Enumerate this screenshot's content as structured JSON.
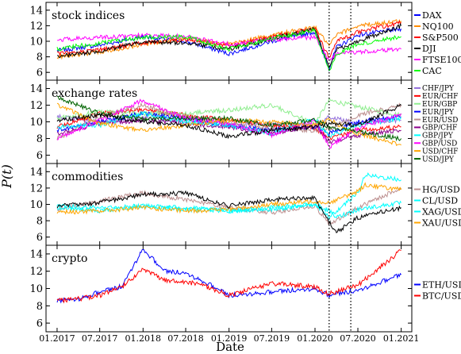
{
  "chart_data": {
    "type": "line",
    "xlabel": "Date",
    "ylabel": "P(t)",
    "x_ticks": [
      "01.2017",
      "07.2017",
      "01.2018",
      "07.2018",
      "01.2019",
      "07.2019",
      "01.2020",
      "07.2020",
      "01.2021"
    ],
    "x_range": [
      "2016-11-15",
      "2021-02-15"
    ],
    "vlines": [
      "2020-03-01",
      "2020-06-01"
    ],
    "legend_placement": "right",
    "grid": false,
    "panels": [
      {
        "title": "stock indices",
        "ylim": [
          5,
          15
        ],
        "yticks": [
          6,
          8,
          10,
          12,
          14
        ],
        "series": [
          {
            "name": "DAX",
            "color": "#0000ff",
            "dates": [
              "2017-01",
              "2017-07",
              "2018-01",
              "2018-07",
              "2019-01",
              "2019-07",
              "2020-01",
              "2020-03",
              "2020-04",
              "2020-07",
              "2021-01"
            ],
            "values": [
              8.8,
              9.5,
              10.6,
              10.0,
              8.4,
              10.0,
              11.2,
              6.5,
              9.2,
              10.8,
              11.6
            ]
          },
          {
            "name": "NQ100",
            "color": "#ff8c00",
            "dates": [
              "2017-01",
              "2017-07",
              "2018-01",
              "2018-07",
              "2019-01",
              "2019-07",
              "2020-01",
              "2020-03",
              "2020-04",
              "2020-07",
              "2021-01"
            ],
            "values": [
              8.0,
              8.6,
              9.6,
              10.4,
              9.6,
              10.8,
              11.8,
              9.4,
              10.8,
              12.0,
              12.6
            ]
          },
          {
            "name": "S&P500",
            "color": "#ff0000",
            "dates": [
              "2017-01",
              "2017-07",
              "2018-01",
              "2018-07",
              "2019-01",
              "2019-07",
              "2020-01",
              "2020-03",
              "2020-04",
              "2020-07",
              "2021-01"
            ],
            "values": [
              8.4,
              8.9,
              9.8,
              10.2,
              9.4,
              10.6,
              11.6,
              7.8,
              10.0,
              11.2,
              12.4
            ]
          },
          {
            "name": "DJI",
            "color": "#000000",
            "dates": [
              "2017-01",
              "2017-07",
              "2018-01",
              "2018-07",
              "2019-01",
              "2019-07",
              "2020-01",
              "2020-03",
              "2020-04",
              "2020-07",
              "2021-01"
            ],
            "values": [
              8.1,
              8.7,
              9.9,
              9.8,
              9.0,
              10.3,
              11.6,
              6.6,
              8.9,
              10.0,
              12.0
            ]
          },
          {
            "name": "FTSE100",
            "color": "#ff00ff",
            "dates": [
              "2017-01",
              "2017-07",
              "2018-01",
              "2018-07",
              "2019-01",
              "2019-07",
              "2020-01",
              "2020-03",
              "2020-04",
              "2020-07",
              "2021-01"
            ],
            "values": [
              10.2,
              10.5,
              10.8,
              10.6,
              9.6,
              10.2,
              10.5,
              7.6,
              8.4,
              8.6,
              9.0
            ]
          },
          {
            "name": "CAC",
            "color": "#00ff00",
            "dates": [
              "2017-01",
              "2017-07",
              "2018-01",
              "2018-07",
              "2019-01",
              "2019-07",
              "2020-01",
              "2020-03",
              "2020-04",
              "2020-07",
              "2021-01"
            ],
            "values": [
              9.0,
              9.8,
              10.5,
              10.6,
              9.0,
              10.4,
              11.4,
              6.2,
              8.4,
              9.6,
              10.6
            ]
          }
        ]
      },
      {
        "title": "exchange rates",
        "ylim": [
          5,
          15
        ],
        "yticks": [
          6,
          8,
          10,
          12,
          14
        ],
        "series": [
          {
            "name": "CHF/JPY",
            "color": "#9370db",
            "dates": [
              "2017-01",
              "2017-07",
              "2018-01",
              "2018-07",
              "2019-01",
              "2019-07",
              "2020-01",
              "2020-03",
              "2020-07",
              "2021-01"
            ],
            "values": [
              10.6,
              10.0,
              10.4,
              10.2,
              9.4,
              9.8,
              9.6,
              10.6,
              9.8,
              10.2
            ]
          },
          {
            "name": "EUR/CHF",
            "color": "#ff0000",
            "dates": [
              "2017-01",
              "2017-07",
              "2018-01",
              "2018-07",
              "2019-01",
              "2019-07",
              "2020-01",
              "2020-03",
              "2020-07",
              "2021-01"
            ],
            "values": [
              9.4,
              11.0,
              11.4,
              10.8,
              10.2,
              9.6,
              9.2,
              8.0,
              9.0,
              9.4
            ]
          },
          {
            "name": "EUR/GBP",
            "color": "#90ee90",
            "dates": [
              "2017-01",
              "2017-07",
              "2018-01",
              "2018-07",
              "2019-01",
              "2019-07",
              "2020-01",
              "2020-03",
              "2020-07",
              "2021-01"
            ],
            "values": [
              10.4,
              11.2,
              11.0,
              11.0,
              11.4,
              12.0,
              9.8,
              12.6,
              11.8,
              10.8
            ]
          },
          {
            "name": "EUR/JPY",
            "color": "#0000ff",
            "dates": [
              "2017-01",
              "2017-07",
              "2018-01",
              "2018-07",
              "2019-01",
              "2019-07",
              "2020-01",
              "2020-03",
              "2020-07",
              "2021-01"
            ],
            "values": [
              9.0,
              10.0,
              11.0,
              10.4,
              9.6,
              9.0,
              9.4,
              8.6,
              10.0,
              10.6
            ]
          },
          {
            "name": "EUR/USD",
            "color": "#bc8f8f",
            "dates": [
              "2017-01",
              "2017-07",
              "2018-01",
              "2018-07",
              "2019-01",
              "2019-07",
              "2020-01",
              "2020-03",
              "2020-07",
              "2021-01"
            ],
            "values": [
              8.0,
              10.6,
              12.0,
              10.6,
              10.0,
              9.2,
              9.0,
              9.2,
              10.8,
              12.0
            ]
          },
          {
            "name": "GBP/CHF",
            "color": "#8b008b",
            "dates": [
              "2017-01",
              "2017-07",
              "2018-01",
              "2018-07",
              "2019-01",
              "2019-07",
              "2020-01",
              "2020-03",
              "2020-07",
              "2021-01"
            ],
            "values": [
              8.6,
              9.8,
              10.2,
              9.8,
              9.4,
              8.6,
              9.6,
              7.6,
              8.4,
              9.0
            ]
          },
          {
            "name": "GBP/JPY",
            "color": "#00ffff",
            "dates": [
              "2017-01",
              "2017-07",
              "2018-01",
              "2018-07",
              "2019-01",
              "2019-07",
              "2020-01",
              "2020-03",
              "2020-07",
              "2021-01"
            ],
            "values": [
              9.4,
              9.6,
              11.0,
              10.0,
              9.6,
              8.6,
              10.4,
              8.2,
              9.6,
              10.4
            ]
          },
          {
            "name": "GBP/USD",
            "color": "#ff00ff",
            "dates": [
              "2017-01",
              "2017-07",
              "2018-01",
              "2018-07",
              "2019-01",
              "2019-07",
              "2020-01",
              "2020-03",
              "2020-07",
              "2021-01"
            ],
            "values": [
              8.0,
              10.2,
              12.6,
              10.4,
              9.8,
              8.4,
              10.2,
              7.0,
              9.2,
              11.0
            ]
          },
          {
            "name": "USD/CHF",
            "color": "#ffa500",
            "dates": [
              "2017-01",
              "2017-07",
              "2018-01",
              "2018-07",
              "2019-01",
              "2019-07",
              "2020-01",
              "2020-03",
              "2020-07",
              "2021-01"
            ],
            "values": [
              12.0,
              9.8,
              9.0,
              9.6,
              10.2,
              10.0,
              9.6,
              10.2,
              8.6,
              7.2
            ]
          },
          {
            "name": "USD/JPY",
            "color": "#006400",
            "dates": [
              "2017-01",
              "2017-07",
              "2018-01",
              "2018-07",
              "2019-01",
              "2019-07",
              "2020-01",
              "2020-03",
              "2020-07",
              "2021-01"
            ],
            "values": [
              13.0,
              11.0,
              10.4,
              10.4,
              10.4,
              9.6,
              10.2,
              9.4,
              8.8,
              8.0
            ]
          },
          {
            "name": "",
            "color": "#000000",
            "dates": [
              "2017-01",
              "2017-07",
              "2018-01",
              "2018-07",
              "2019-01",
              "2019-07",
              "2020-01",
              "2020-03",
              "2020-07",
              "2021-01"
            ],
            "values": [
              10.2,
              10.8,
              10.0,
              9.6,
              8.2,
              9.0,
              9.4,
              9.8,
              9.6,
              12.0
            ]
          }
        ]
      },
      {
        "title": "commodities",
        "ylim": [
          5,
          15
        ],
        "yticks": [
          6,
          8,
          10,
          12,
          14
        ],
        "series": [
          {
            "name": "HG/USD",
            "color": "#bc8f8f",
            "dates": [
              "2017-01",
              "2017-07",
              "2018-01",
              "2018-07",
              "2019-01",
              "2019-07",
              "2020-01",
              "2020-03",
              "2020-07",
              "2021-01"
            ],
            "values": [
              9.4,
              10.4,
              11.4,
              10.6,
              9.6,
              9.0,
              9.8,
              7.6,
              9.6,
              12.0
            ]
          },
          {
            "name": "CL/USD",
            "color": "#00ffff",
            "dates": [
              "2017-01",
              "2017-07",
              "2018-01",
              "2018-07",
              "2019-01",
              "2019-07",
              "2020-01",
              "2020-03",
              "2020-04",
              "2020-07",
              "2021-01"
            ],
            "values": [
              9.6,
              9.2,
              9.8,
              9.6,
              9.2,
              9.6,
              10.0,
              9.2,
              8.4,
              9.4,
              10.2
            ]
          },
          {
            "name": "XAG/USD",
            "color": "#00ffff",
            "dates": [
              "2017-01",
              "2017-07",
              "2018-01",
              "2018-07",
              "2019-01",
              "2019-07",
              "2020-01",
              "2020-03",
              "2020-07",
              "2020-08",
              "2021-01"
            ],
            "values": [
              9.8,
              9.6,
              9.8,
              9.4,
              9.2,
              9.4,
              10.0,
              8.4,
              11.4,
              13.6,
              13.0
            ]
          },
          {
            "name": "XAU/USD",
            "color": "#ffa500",
            "dates": [
              "2017-01",
              "2017-07",
              "2018-01",
              "2018-07",
              "2019-01",
              "2019-07",
              "2020-01",
              "2020-03",
              "2020-07",
              "2020-08",
              "2021-01"
            ],
            "values": [
              9.0,
              9.2,
              9.6,
              9.2,
              9.4,
              10.0,
              10.4,
              10.2,
              11.6,
              12.4,
              11.8
            ]
          },
          {
            "name": "",
            "color": "#000000",
            "dates": [
              "2017-01",
              "2017-07",
              "2018-01",
              "2018-07",
              "2019-01",
              "2019-07",
              "2020-01",
              "2020-03",
              "2020-04",
              "2020-07",
              "2021-01"
            ],
            "values": [
              9.8,
              10.2,
              11.2,
              11.4,
              9.8,
              10.6,
              10.8,
              7.8,
              6.6,
              8.4,
              9.6
            ]
          }
        ]
      },
      {
        "title": "crypto",
        "ylim": [
          5,
          15
        ],
        "yticks": [
          6,
          8,
          10,
          12,
          14
        ],
        "series": [
          {
            "name": "ETH/USD",
            "color": "#0000ff",
            "dates": [
              "2017-01",
              "2017-04",
              "2017-07",
              "2017-10",
              "2018-01",
              "2018-04",
              "2018-07",
              "2018-10",
              "2019-01",
              "2019-07",
              "2020-01",
              "2020-03",
              "2020-07",
              "2021-01"
            ],
            "values": [
              8.6,
              8.8,
              9.6,
              10.2,
              14.6,
              12.0,
              11.8,
              10.6,
              9.2,
              9.6,
              10.0,
              9.2,
              9.8,
              11.6
            ]
          },
          {
            "name": "BTC/USD",
            "color": "#ff0000",
            "dates": [
              "2017-01",
              "2017-04",
              "2017-07",
              "2017-10",
              "2018-01",
              "2018-04",
              "2018-07",
              "2018-10",
              "2019-01",
              "2019-07",
              "2020-01",
              "2020-03",
              "2020-07",
              "2021-01"
            ],
            "values": [
              8.6,
              8.8,
              9.2,
              10.2,
              12.2,
              11.0,
              10.8,
              10.2,
              9.2,
              10.6,
              10.2,
              9.4,
              10.4,
              14.4
            ]
          }
        ]
      }
    ]
  }
}
